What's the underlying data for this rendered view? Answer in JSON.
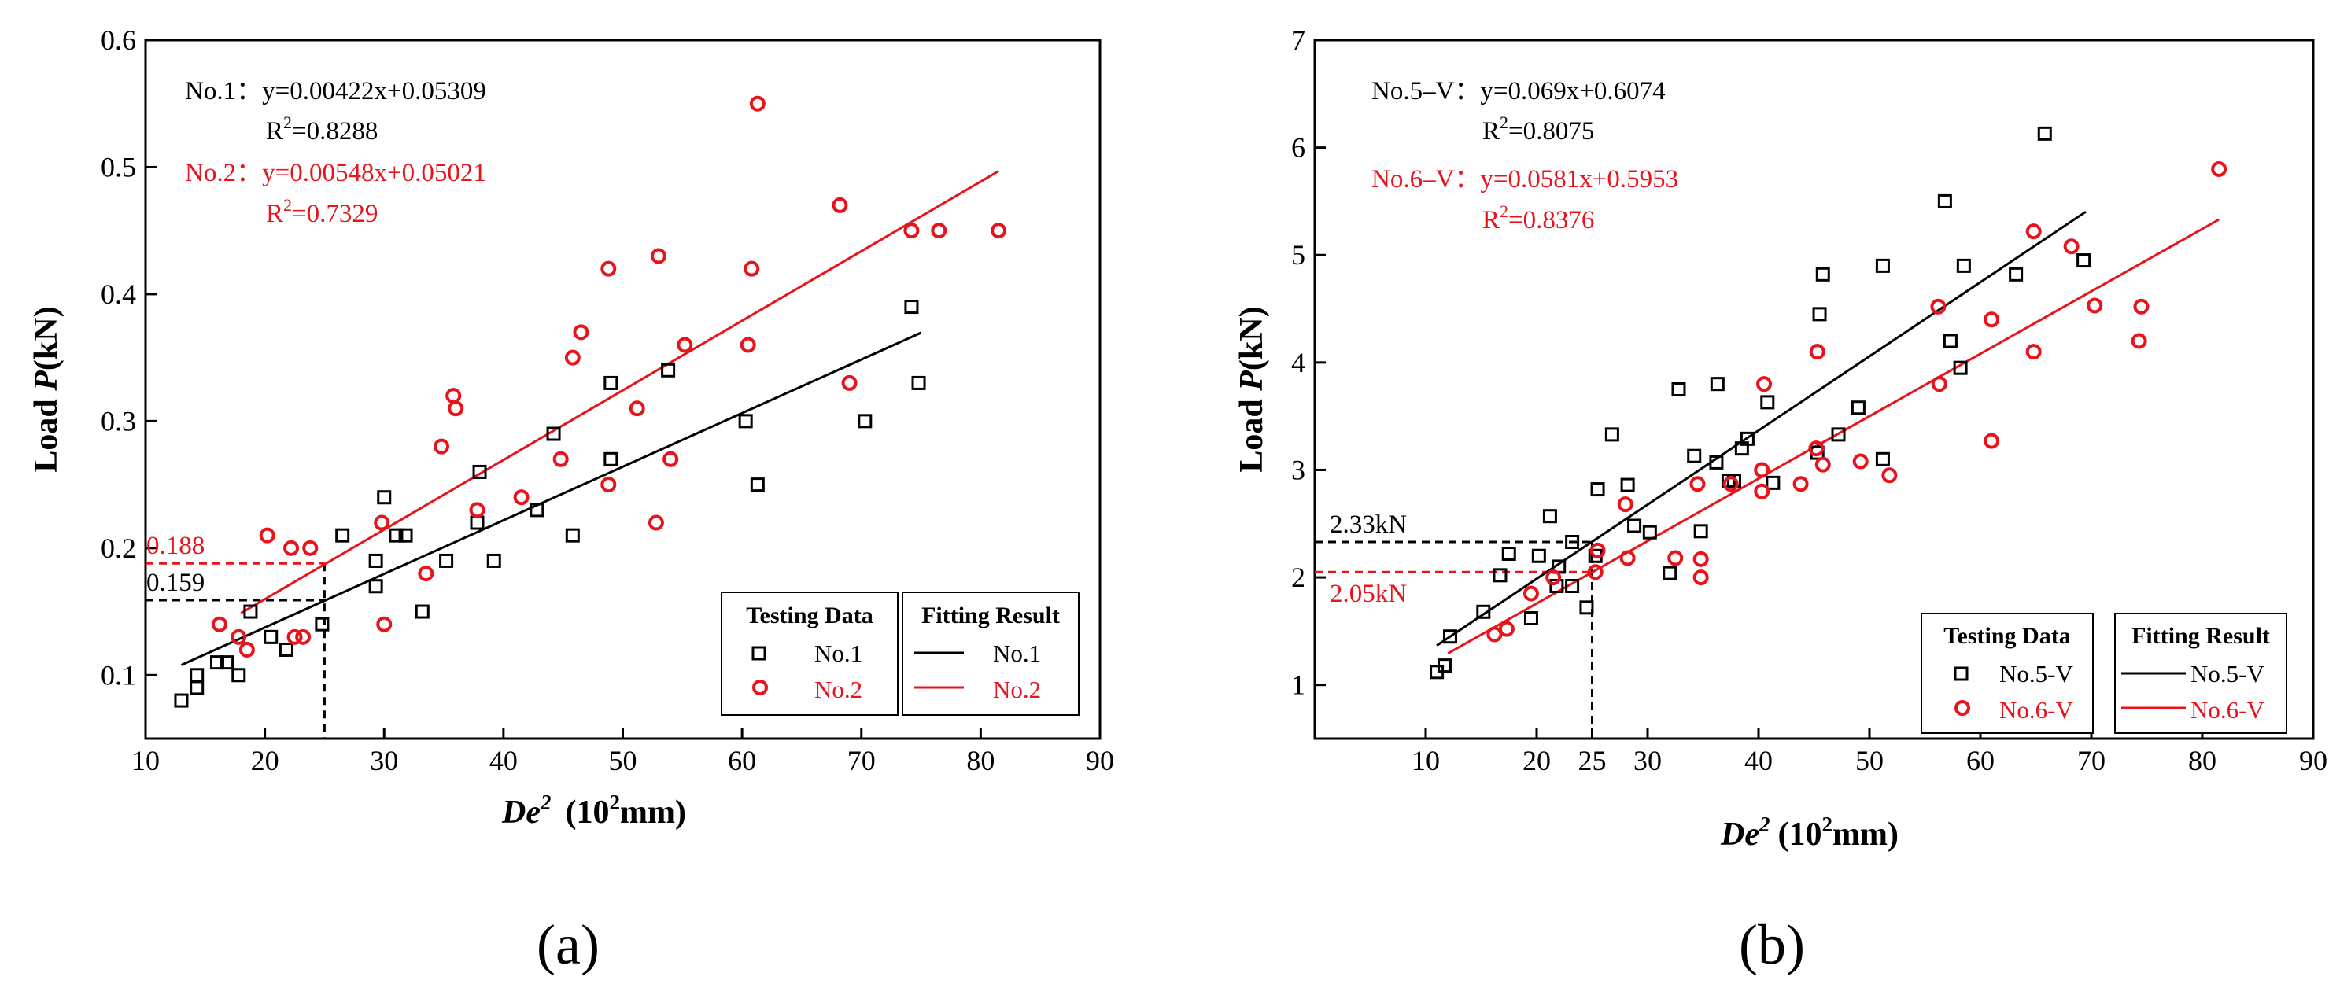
{
  "chart_data": [
    {
      "type": "scatter",
      "panel_label": "(a)",
      "xlabel_main": "De",
      "xlabel_sup": "2",
      "xlabel_unit_pre": "(10",
      "xlabel_unit_sup": "2",
      "xlabel_unit_post": "mm)",
      "ylabel_pre": "Load ",
      "ylabel_var": "P",
      "ylabel_unit": "(kN)",
      "xlim": [
        10,
        90
      ],
      "ylim": [
        0.05,
        0.6
      ],
      "xticks": [
        10,
        20,
        30,
        40,
        50,
        60,
        70,
        80,
        90
      ],
      "yticks": [
        0.1,
        0.2,
        0.3,
        0.4,
        0.5,
        0.6
      ],
      "ytick_labels": [
        "0.1",
        "0.2",
        "0.3",
        "0.4",
        "0.5",
        "0.6"
      ],
      "eq1_name": "No.1：",
      "eq1": "y=0.00422x+0.05309",
      "eq1_r2_pre": "R",
      "eq1_r2_sup": "2",
      "eq1_r2_post": "=0.8288",
      "eq2_name": "No.2：",
      "eq2": "y=0.00548x+0.05021",
      "eq2_r2_pre": "R",
      "eq2_r2_sup": "2",
      "eq2_r2_post": "=0.7329",
      "ref_x": 25,
      "ref_lines": [
        {
          "value": 0.188,
          "label": "0.188",
          "color": "#e8131b"
        },
        {
          "value": 0.159,
          "label": "0.159",
          "color": "#000000"
        }
      ],
      "legend_data_title": "Testing Data",
      "legend_fit_title": "Fitting Result",
      "series": [
        {
          "name": "No.1",
          "color": "#000000",
          "marker": "square",
          "fit": {
            "slope": 0.00422,
            "intercept": 0.05309,
            "x_range": [
              13,
              75
            ]
          },
          "points": [
            [
              13,
              0.08
            ],
            [
              14.3,
              0.09
            ],
            [
              14.3,
              0.1
            ],
            [
              16,
              0.11
            ],
            [
              16.8,
              0.11
            ],
            [
              17.8,
              0.1
            ],
            [
              18.8,
              0.15
            ],
            [
              20.5,
              0.13
            ],
            [
              21.8,
              0.12
            ],
            [
              24.8,
              0.14
            ],
            [
              26.5,
              0.21
            ],
            [
              29.3,
              0.17
            ],
            [
              29.3,
              0.19
            ],
            [
              30,
              0.24
            ],
            [
              31,
              0.21
            ],
            [
              31.8,
              0.21
            ],
            [
              33.2,
              0.15
            ],
            [
              35.2,
              0.19
            ],
            [
              37.8,
              0.22
            ],
            [
              38,
              0.26
            ],
            [
              39.2,
              0.19
            ],
            [
              42.8,
              0.23
            ],
            [
              44.2,
              0.29
            ],
            [
              45.8,
              0.21
            ],
            [
              49,
              0.27
            ],
            [
              49,
              0.33
            ],
            [
              53.8,
              0.34
            ],
            [
              60.3,
              0.3
            ],
            [
              61.3,
              0.25
            ],
            [
              70.3,
              0.3
            ],
            [
              74.2,
              0.39
            ],
            [
              74.8,
              0.33
            ]
          ]
        },
        {
          "name": "No.2",
          "color": "#e8131b",
          "marker": "circle",
          "fit": {
            "slope": 0.00548,
            "intercept": 0.05021,
            "x_range": [
              18,
              81.5
            ]
          },
          "points": [
            [
              16.2,
              0.14
            ],
            [
              17.8,
              0.13
            ],
            [
              18.5,
              0.12
            ],
            [
              20.2,
              0.21
            ],
            [
              22.2,
              0.2
            ],
            [
              22.5,
              0.13
            ],
            [
              23.2,
              0.13
            ],
            [
              23.8,
              0.2
            ],
            [
              29.8,
              0.22
            ],
            [
              30,
              0.14
            ],
            [
              33.5,
              0.18
            ],
            [
              34.8,
              0.28
            ],
            [
              35.8,
              0.32
            ],
            [
              36,
              0.31
            ],
            [
              37.8,
              0.23
            ],
            [
              41.5,
              0.24
            ],
            [
              44.8,
              0.27
            ],
            [
              45.8,
              0.35
            ],
            [
              46.5,
              0.37
            ],
            [
              48.8,
              0.42
            ],
            [
              48.8,
              0.25
            ],
            [
              51.2,
              0.31
            ],
            [
              52.8,
              0.22
            ],
            [
              53,
              0.43
            ],
            [
              54,
              0.27
            ],
            [
              55.2,
              0.36
            ],
            [
              60.5,
              0.36
            ],
            [
              60.8,
              0.42
            ],
            [
              61.3,
              0.55
            ],
            [
              68.2,
              0.47
            ],
            [
              69,
              0.33
            ],
            [
              74.2,
              0.45
            ],
            [
              76.5,
              0.45
            ],
            [
              81.5,
              0.45
            ]
          ]
        }
      ]
    },
    {
      "type": "scatter",
      "panel_label": "(b)",
      "xlabel_main": "De",
      "xlabel_sup": "2",
      "xlabel_unit_pre": "(10",
      "xlabel_unit_sup": "2",
      "xlabel_unit_post": "mm)",
      "ylabel_pre": "Load ",
      "ylabel_var": "P",
      "ylabel_unit": "(kN)",
      "xlim": [
        0,
        90
      ],
      "ylim": [
        0.5,
        7
      ],
      "xticks": [
        10,
        20,
        25,
        30,
        40,
        50,
        60,
        70,
        80,
        90
      ],
      "yticks": [
        1,
        2,
        3,
        4,
        5,
        6,
        7
      ],
      "ytick_labels": [
        "1",
        "2",
        "3",
        "4",
        "5",
        "6",
        "7"
      ],
      "eq1_name": "No.5–V：",
      "eq1": "y=0.069x+0.6074",
      "eq1_r2_pre": "R",
      "eq1_r2_sup": "2",
      "eq1_r2_post": "=0.8075",
      "eq2_name": "No.6–V：",
      "eq2": "y=0.0581x+0.5953",
      "eq2_r2_pre": "R",
      "eq2_r2_sup": "2",
      "eq2_r2_post": "=0.8376",
      "ref_x": 25,
      "ref_lines": [
        {
          "value": 2.33,
          "label": "2.33kN",
          "color": "#000000"
        },
        {
          "value": 2.05,
          "label": "2.05kN",
          "color": "#e8131b"
        }
      ],
      "legend_data_title": "Testing Data",
      "legend_fit_title": "Fitting Result",
      "series": [
        {
          "name": "No.5-V",
          "color": "#000000",
          "marker": "square",
          "fit": {
            "slope": 0.069,
            "intercept": 0.6074,
            "x_range": [
              11,
              69.5
            ]
          },
          "points": [
            [
              11,
              1.12
            ],
            [
              11.7,
              1.18
            ],
            [
              12.2,
              1.45
            ],
            [
              15.2,
              1.68
            ],
            [
              16.7,
              2.02
            ],
            [
              17.5,
              2.22
            ],
            [
              19.5,
              1.62
            ],
            [
              20.2,
              2.2
            ],
            [
              21.2,
              2.57
            ],
            [
              21.8,
              1.92
            ],
            [
              22,
              2.1
            ],
            [
              23.2,
              2.33
            ],
            [
              23.2,
              1.92
            ],
            [
              24.5,
              1.72
            ],
            [
              25.3,
              2.2
            ],
            [
              25.5,
              2.82
            ],
            [
              26.8,
              3.33
            ],
            [
              28.2,
              2.86
            ],
            [
              28.8,
              2.48
            ],
            [
              30.2,
              2.42
            ],
            [
              32,
              2.04
            ],
            [
              32.8,
              3.75
            ],
            [
              34.2,
              3.13
            ],
            [
              34.8,
              2.43
            ],
            [
              36.2,
              3.07
            ],
            [
              36.3,
              3.8
            ],
            [
              37.3,
              2.9
            ],
            [
              37.8,
              2.9
            ],
            [
              38.5,
              3.2
            ],
            [
              39,
              3.29
            ],
            [
              40.8,
              3.63
            ],
            [
              41.3,
              2.88
            ],
            [
              45.3,
              3.16
            ],
            [
              45.5,
              4.45
            ],
            [
              45.8,
              4.82
            ],
            [
              47.2,
              3.33
            ],
            [
              49,
              3.58
            ],
            [
              51.2,
              4.9
            ],
            [
              51.2,
              3.1
            ],
            [
              56.8,
              5.5
            ],
            [
              57.3,
              4.2
            ],
            [
              58.2,
              3.95
            ],
            [
              58.5,
              4.9
            ],
            [
              63.2,
              4.82
            ],
            [
              65.8,
              6.13
            ],
            [
              69.3,
              4.95
            ]
          ]
        },
        {
          "name": "No.6-V",
          "color": "#e8131b",
          "marker": "circle",
          "fit": {
            "slope": 0.0581,
            "intercept": 0.5953,
            "x_range": [
              12,
              81.5
            ]
          },
          "points": [
            [
              16.2,
              1.47
            ],
            [
              17.3,
              1.52
            ],
            [
              19.5,
              1.85
            ],
            [
              21.5,
              2
            ],
            [
              25.3,
              2.05
            ],
            [
              25.5,
              2.25
            ],
            [
              28,
              2.68
            ],
            [
              28.2,
              2.18
            ],
            [
              32.5,
              2.18
            ],
            [
              34.5,
              2.87
            ],
            [
              34.8,
              2
            ],
            [
              34.8,
              2.17
            ],
            [
              37.5,
              2.87
            ],
            [
              40.3,
              3
            ],
            [
              40.3,
              2.8
            ],
            [
              40.5,
              3.8
            ],
            [
              43.8,
              2.87
            ],
            [
              45.2,
              3.2
            ],
            [
              45.3,
              4.1
            ],
            [
              45.8,
              3.05
            ],
            [
              49.2,
              3.08
            ],
            [
              51.8,
              2.95
            ],
            [
              56.2,
              4.52
            ],
            [
              56.3,
              3.8
            ],
            [
              61,
              3.27
            ],
            [
              61,
              4.4
            ],
            [
              64.8,
              5.22
            ],
            [
              64.8,
              4.1
            ],
            [
              68.2,
              5.08
            ],
            [
              70.3,
              4.53
            ],
            [
              74.3,
              4.2
            ],
            [
              74.5,
              4.52
            ],
            [
              81.5,
              5.8
            ]
          ]
        }
      ]
    }
  ]
}
